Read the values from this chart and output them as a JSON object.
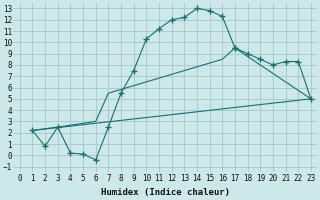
{
  "xlabel": "Humidex (Indice chaleur)",
  "bg_color": "#cce8e8",
  "grid_color": "#aacccc",
  "line_color": "#1a7070",
  "xlim": [
    -0.5,
    23.5
  ],
  "ylim": [
    -1.5,
    13.5
  ],
  "xticks": [
    0,
    1,
    2,
    3,
    4,
    5,
    6,
    7,
    8,
    9,
    10,
    11,
    12,
    13,
    14,
    15,
    16,
    17,
    18,
    19,
    20,
    21,
    22,
    23
  ],
  "yticks": [
    -1,
    0,
    1,
    2,
    3,
    4,
    5,
    6,
    7,
    8,
    9,
    10,
    11,
    12,
    13
  ],
  "curve1_x": [
    1,
    2,
    3,
    4,
    5,
    6,
    7,
    8,
    9,
    10,
    11,
    12,
    13,
    14,
    15,
    16,
    17
  ],
  "curve1_y": [
    2.2,
    0.8,
    2.5,
    0.2,
    0.1,
    -0.4,
    2.5,
    5.5,
    7.5,
    10.3,
    11.2,
    12.0,
    12.2,
    13.0,
    12.8,
    12.3,
    9.5
  ],
  "curve2_x": [
    1,
    3,
    6,
    7,
    16,
    17,
    23
  ],
  "curve2_y": [
    2.2,
    2.5,
    3.0,
    5.5,
    8.5,
    9.5,
    5.0
  ],
  "curve3_x": [
    1,
    23
  ],
  "curve3_y": [
    2.2,
    5.0
  ],
  "curve4_x": [
    17,
    18,
    19,
    20,
    21,
    22,
    23
  ],
  "curve4_y": [
    9.5,
    9.0,
    8.5,
    8.0,
    8.3,
    8.3,
    5.0
  ]
}
